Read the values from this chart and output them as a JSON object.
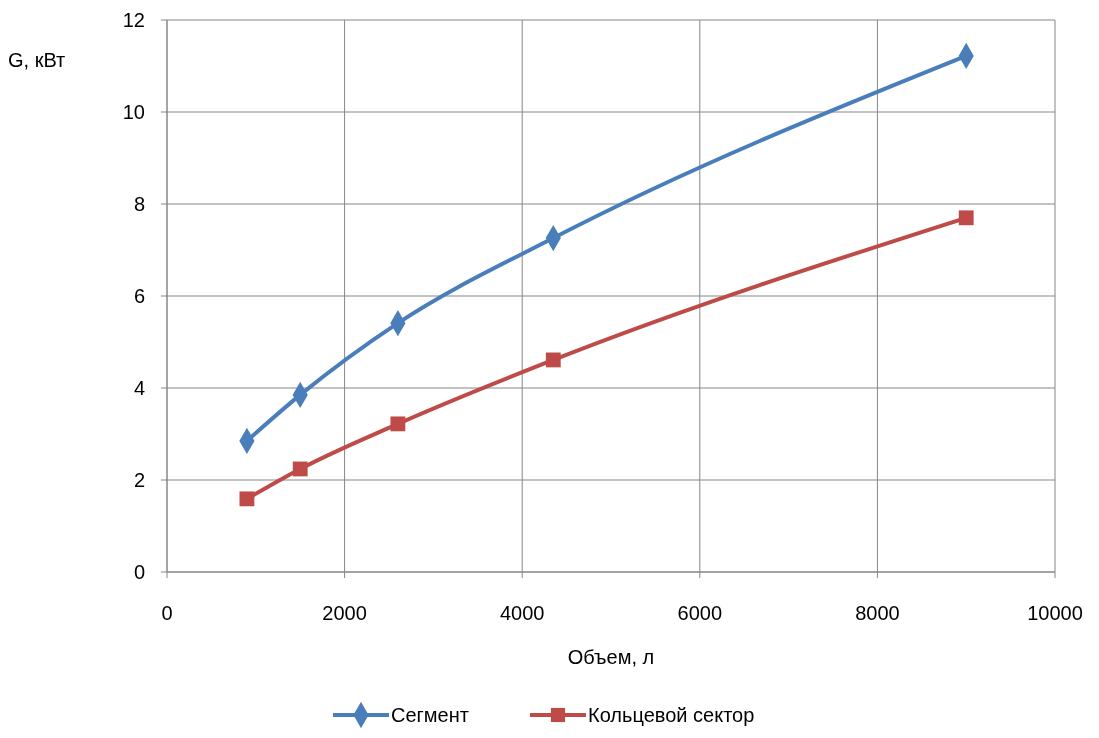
{
  "chart_data": {
    "type": "line",
    "xlabel": "Объем, л",
    "ylabel": "G, кВт",
    "xlim": [
      0,
      10000
    ],
    "xticks": [
      0,
      2000,
      4000,
      6000,
      8000,
      10000
    ],
    "ylim": [
      0,
      12
    ],
    "yticks": [
      0,
      2,
      4,
      6,
      8,
      10,
      12
    ],
    "grid": true,
    "legend": "bottom",
    "line_style": "solid",
    "series": [
      {
        "name": "Сегмент",
        "color": "#4a7ebb",
        "marker": "diamond",
        "x": [
          900,
          1500,
          2600,
          4350,
          9000
        ],
        "values": [
          2.85,
          3.85,
          5.41,
          7.26,
          11.22
        ]
      },
      {
        "name": "Кольцевой сектор",
        "color": "#be4b48",
        "marker": "square",
        "x": [
          900,
          1500,
          2600,
          4350,
          9000
        ],
        "values": [
          1.59,
          2.24,
          3.22,
          4.61,
          7.7
        ]
      }
    ]
  }
}
